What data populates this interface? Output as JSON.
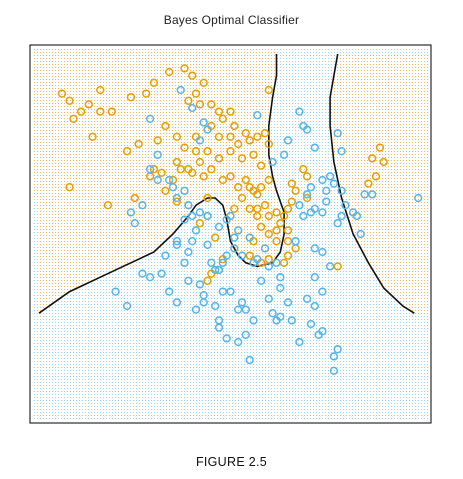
{
  "title": "Bayes Optimal Classifier",
  "caption": "FIGURE 2.5",
  "chart_data": {
    "type": "scatter",
    "title": "Bayes Optimal Classifier",
    "xlabel": "",
    "ylabel": "",
    "xlim": [
      0,
      100
    ],
    "ylim": [
      0,
      100
    ],
    "grid": false,
    "axes_ticks": false,
    "background": "dotted grid shaded by predicted class",
    "colors": {
      "orange": "#E69F00",
      "blue": "#56B4E9",
      "boundary": "#111111",
      "frame": "#000000"
    },
    "boundary": [
      [
        0,
        28
      ],
      [
        8,
        34
      ],
      [
        16,
        38
      ],
      [
        24,
        42
      ],
      [
        30,
        45
      ],
      [
        35,
        50
      ],
      [
        39,
        55
      ],
      [
        41,
        58
      ],
      [
        44,
        60
      ],
      [
        46,
        60
      ],
      [
        48,
        58
      ],
      [
        49,
        54
      ],
      [
        50,
        48
      ],
      [
        52,
        44
      ],
      [
        54,
        42
      ],
      [
        57,
        41
      ],
      [
        61,
        42
      ],
      [
        63,
        45
      ],
      [
        64,
        50
      ],
      [
        64,
        56
      ],
      [
        62,
        62
      ],
      [
        61,
        66
      ],
      [
        60,
        72
      ],
      [
        60,
        80
      ],
      [
        61,
        88
      ],
      [
        62,
        94
      ],
      [
        62,
        100
      ]
    ],
    "boundary2": [
      [
        78,
        100
      ],
      [
        77,
        94
      ],
      [
        76,
        88
      ],
      [
        76,
        80
      ],
      [
        77,
        70
      ],
      [
        79,
        60
      ],
      [
        82,
        50
      ],
      [
        86,
        42
      ],
      [
        90,
        35
      ],
      [
        95,
        30
      ],
      [
        98,
        28
      ]
    ],
    "series": [
      {
        "name": "orange",
        "points": [
          [
            8,
            87
          ],
          [
            13,
            86
          ],
          [
            11,
            84
          ],
          [
            16,
            84
          ],
          [
            9,
            82
          ],
          [
            19,
            84
          ],
          [
            14,
            77
          ],
          [
            16,
            90
          ],
          [
            24,
            88
          ],
          [
            28,
            89
          ],
          [
            38,
            96
          ],
          [
            34,
            95
          ],
          [
            40,
            94
          ],
          [
            43,
            92
          ],
          [
            30,
            92
          ],
          [
            41,
            89
          ],
          [
            39,
            87
          ],
          [
            42,
            86
          ],
          [
            45,
            86
          ],
          [
            47,
            84
          ],
          [
            50,
            84
          ],
          [
            60,
            90
          ],
          [
            33,
            80
          ],
          [
            31,
            76
          ],
          [
            36,
            77
          ],
          [
            41,
            77
          ],
          [
            45,
            80
          ],
          [
            47,
            77
          ],
          [
            50,
            77
          ],
          [
            52,
            75
          ],
          [
            54,
            78
          ],
          [
            55,
            76
          ],
          [
            57,
            77
          ],
          [
            59,
            78
          ],
          [
            60,
            75
          ],
          [
            56,
            72
          ],
          [
            58,
            69
          ],
          [
            53,
            71
          ],
          [
            50,
            73
          ],
          [
            47,
            71
          ],
          [
            44,
            73
          ],
          [
            41,
            73
          ],
          [
            38,
            74
          ],
          [
            23,
            73
          ],
          [
            26,
            75
          ],
          [
            36,
            70
          ],
          [
            39,
            68
          ],
          [
            42,
            70
          ],
          [
            45,
            68
          ],
          [
            43,
            66
          ],
          [
            40,
            67
          ],
          [
            37,
            68
          ],
          [
            32,
            67
          ],
          [
            30,
            68
          ],
          [
            29,
            66
          ],
          [
            35,
            65
          ],
          [
            36,
            59
          ],
          [
            33,
            62
          ],
          [
            39,
            58
          ],
          [
            48,
            65
          ],
          [
            50,
            66
          ],
          [
            52,
            63
          ],
          [
            54,
            65
          ],
          [
            55,
            63
          ],
          [
            56,
            62
          ],
          [
            57,
            61
          ],
          [
            58,
            63
          ],
          [
            60,
            65
          ],
          [
            53,
            60
          ],
          [
            55,
            57
          ],
          [
            57,
            57
          ],
          [
            59,
            58
          ],
          [
            60,
            55
          ],
          [
            62,
            56
          ],
          [
            64,
            55
          ],
          [
            65,
            57
          ],
          [
            66,
            59
          ],
          [
            67,
            62
          ],
          [
            66,
            64
          ],
          [
            70,
            66
          ],
          [
            69,
            68
          ],
          [
            56,
            48
          ],
          [
            55,
            44
          ],
          [
            58,
            42
          ],
          [
            60,
            43
          ],
          [
            48,
            43
          ],
          [
            47,
            40
          ],
          [
            45,
            39
          ],
          [
            44,
            37
          ],
          [
            64,
            42
          ],
          [
            65,
            48
          ],
          [
            62,
            51
          ],
          [
            63,
            53
          ],
          [
            65,
            51
          ],
          [
            67,
            46
          ],
          [
            70,
            60
          ],
          [
            25,
            60
          ],
          [
            18,
            58
          ],
          [
            8,
            63
          ],
          [
            89,
            74
          ],
          [
            87,
            71
          ],
          [
            90,
            70
          ],
          [
            88,
            66
          ],
          [
            86,
            64
          ],
          [
            78,
            41
          ],
          [
            6,
            89
          ],
          [
            42,
            53
          ],
          [
            46,
            49
          ],
          [
            44,
            55
          ],
          [
            44,
            60
          ],
          [
            51,
            57
          ],
          [
            57,
            55
          ],
          [
            58,
            52
          ],
          [
            60,
            50
          ],
          [
            62,
            48
          ],
          [
            65,
            44
          ],
          [
            48,
            82
          ],
          [
            51,
            80
          ]
        ]
      },
      {
        "name": "blue",
        "points": [
          [
            37,
            90
          ],
          [
            40,
            85
          ],
          [
            43,
            81
          ],
          [
            44,
            79
          ],
          [
            42,
            76
          ],
          [
            29,
            82
          ],
          [
            31,
            72
          ],
          [
            29,
            68
          ],
          [
            31,
            65
          ],
          [
            34,
            65
          ],
          [
            35,
            63
          ],
          [
            36,
            60
          ],
          [
            38,
            62
          ],
          [
            39,
            58
          ],
          [
            38,
            54
          ],
          [
            40,
            55
          ],
          [
            42,
            56
          ],
          [
            44,
            55
          ],
          [
            41,
            51
          ],
          [
            40,
            48
          ],
          [
            39,
            45
          ],
          [
            38,
            42
          ],
          [
            45,
            42
          ],
          [
            46,
            40
          ],
          [
            47,
            40
          ],
          [
            48,
            42
          ],
          [
            49,
            44
          ],
          [
            47,
            52
          ],
          [
            49,
            54
          ],
          [
            50,
            55
          ],
          [
            52,
            51
          ],
          [
            51,
            49
          ],
          [
            51,
            46
          ],
          [
            55,
            49
          ],
          [
            53,
            44
          ],
          [
            56,
            42
          ],
          [
            57,
            43
          ],
          [
            58,
            37
          ],
          [
            60,
            41
          ],
          [
            62,
            42
          ],
          [
            63,
            38
          ],
          [
            63,
            35
          ],
          [
            60,
            32
          ],
          [
            61,
            28
          ],
          [
            62,
            26
          ],
          [
            54,
            29
          ],
          [
            53,
            31
          ],
          [
            56,
            26
          ],
          [
            54,
            22
          ],
          [
            52,
            20
          ],
          [
            47,
            24
          ],
          [
            49,
            21
          ],
          [
            33,
            44
          ],
          [
            32,
            39
          ],
          [
            34,
            34
          ],
          [
            36,
            31
          ],
          [
            39,
            37
          ],
          [
            42,
            36
          ],
          [
            43,
            33
          ],
          [
            46,
            30
          ],
          [
            48,
            34
          ],
          [
            50,
            34
          ],
          [
            43,
            31
          ],
          [
            47,
            26
          ],
          [
            52,
            29
          ],
          [
            41,
            29
          ],
          [
            27,
            39
          ],
          [
            23,
            30
          ],
          [
            20,
            34
          ],
          [
            29,
            38
          ],
          [
            36,
            48
          ],
          [
            25,
            53
          ],
          [
            24,
            56
          ],
          [
            27,
            58
          ],
          [
            71,
            63
          ],
          [
            70,
            61
          ],
          [
            68,
            58
          ],
          [
            71,
            56
          ],
          [
            72,
            57
          ],
          [
            74,
            56
          ],
          [
            75,
            62
          ],
          [
            77,
            64
          ],
          [
            74,
            65
          ],
          [
            75,
            59
          ],
          [
            76,
            66
          ],
          [
            78,
            53
          ],
          [
            79,
            55
          ],
          [
            69,
            55
          ],
          [
            67,
            48
          ],
          [
            72,
            46
          ],
          [
            74,
            45
          ],
          [
            76,
            41
          ],
          [
            72,
            38
          ],
          [
            74,
            34
          ],
          [
            70,
            32
          ],
          [
            71,
            25
          ],
          [
            73,
            22
          ],
          [
            74,
            23
          ],
          [
            68,
            20
          ],
          [
            66,
            26
          ],
          [
            63,
            27
          ],
          [
            72,
            30
          ],
          [
            65,
            31
          ],
          [
            59,
            46
          ],
          [
            61,
            70
          ],
          [
            64,
            72
          ],
          [
            65,
            76
          ],
          [
            69,
            80
          ],
          [
            68,
            84
          ],
          [
            70,
            79
          ],
          [
            72,
            74
          ],
          [
            79,
            73
          ],
          [
            79,
            62
          ],
          [
            80,
            58
          ],
          [
            84,
            50
          ],
          [
            83,
            55
          ],
          [
            87,
            61
          ],
          [
            99,
            60
          ],
          [
            78,
            78
          ],
          [
            57,
            83
          ],
          [
            36,
            47
          ],
          [
            44,
            47
          ],
          [
            55,
            15
          ],
          [
            77,
            12
          ],
          [
            77,
            16
          ],
          [
            78,
            18
          ],
          [
            82,
            56
          ],
          [
            85,
            61
          ]
        ]
      }
    ]
  }
}
